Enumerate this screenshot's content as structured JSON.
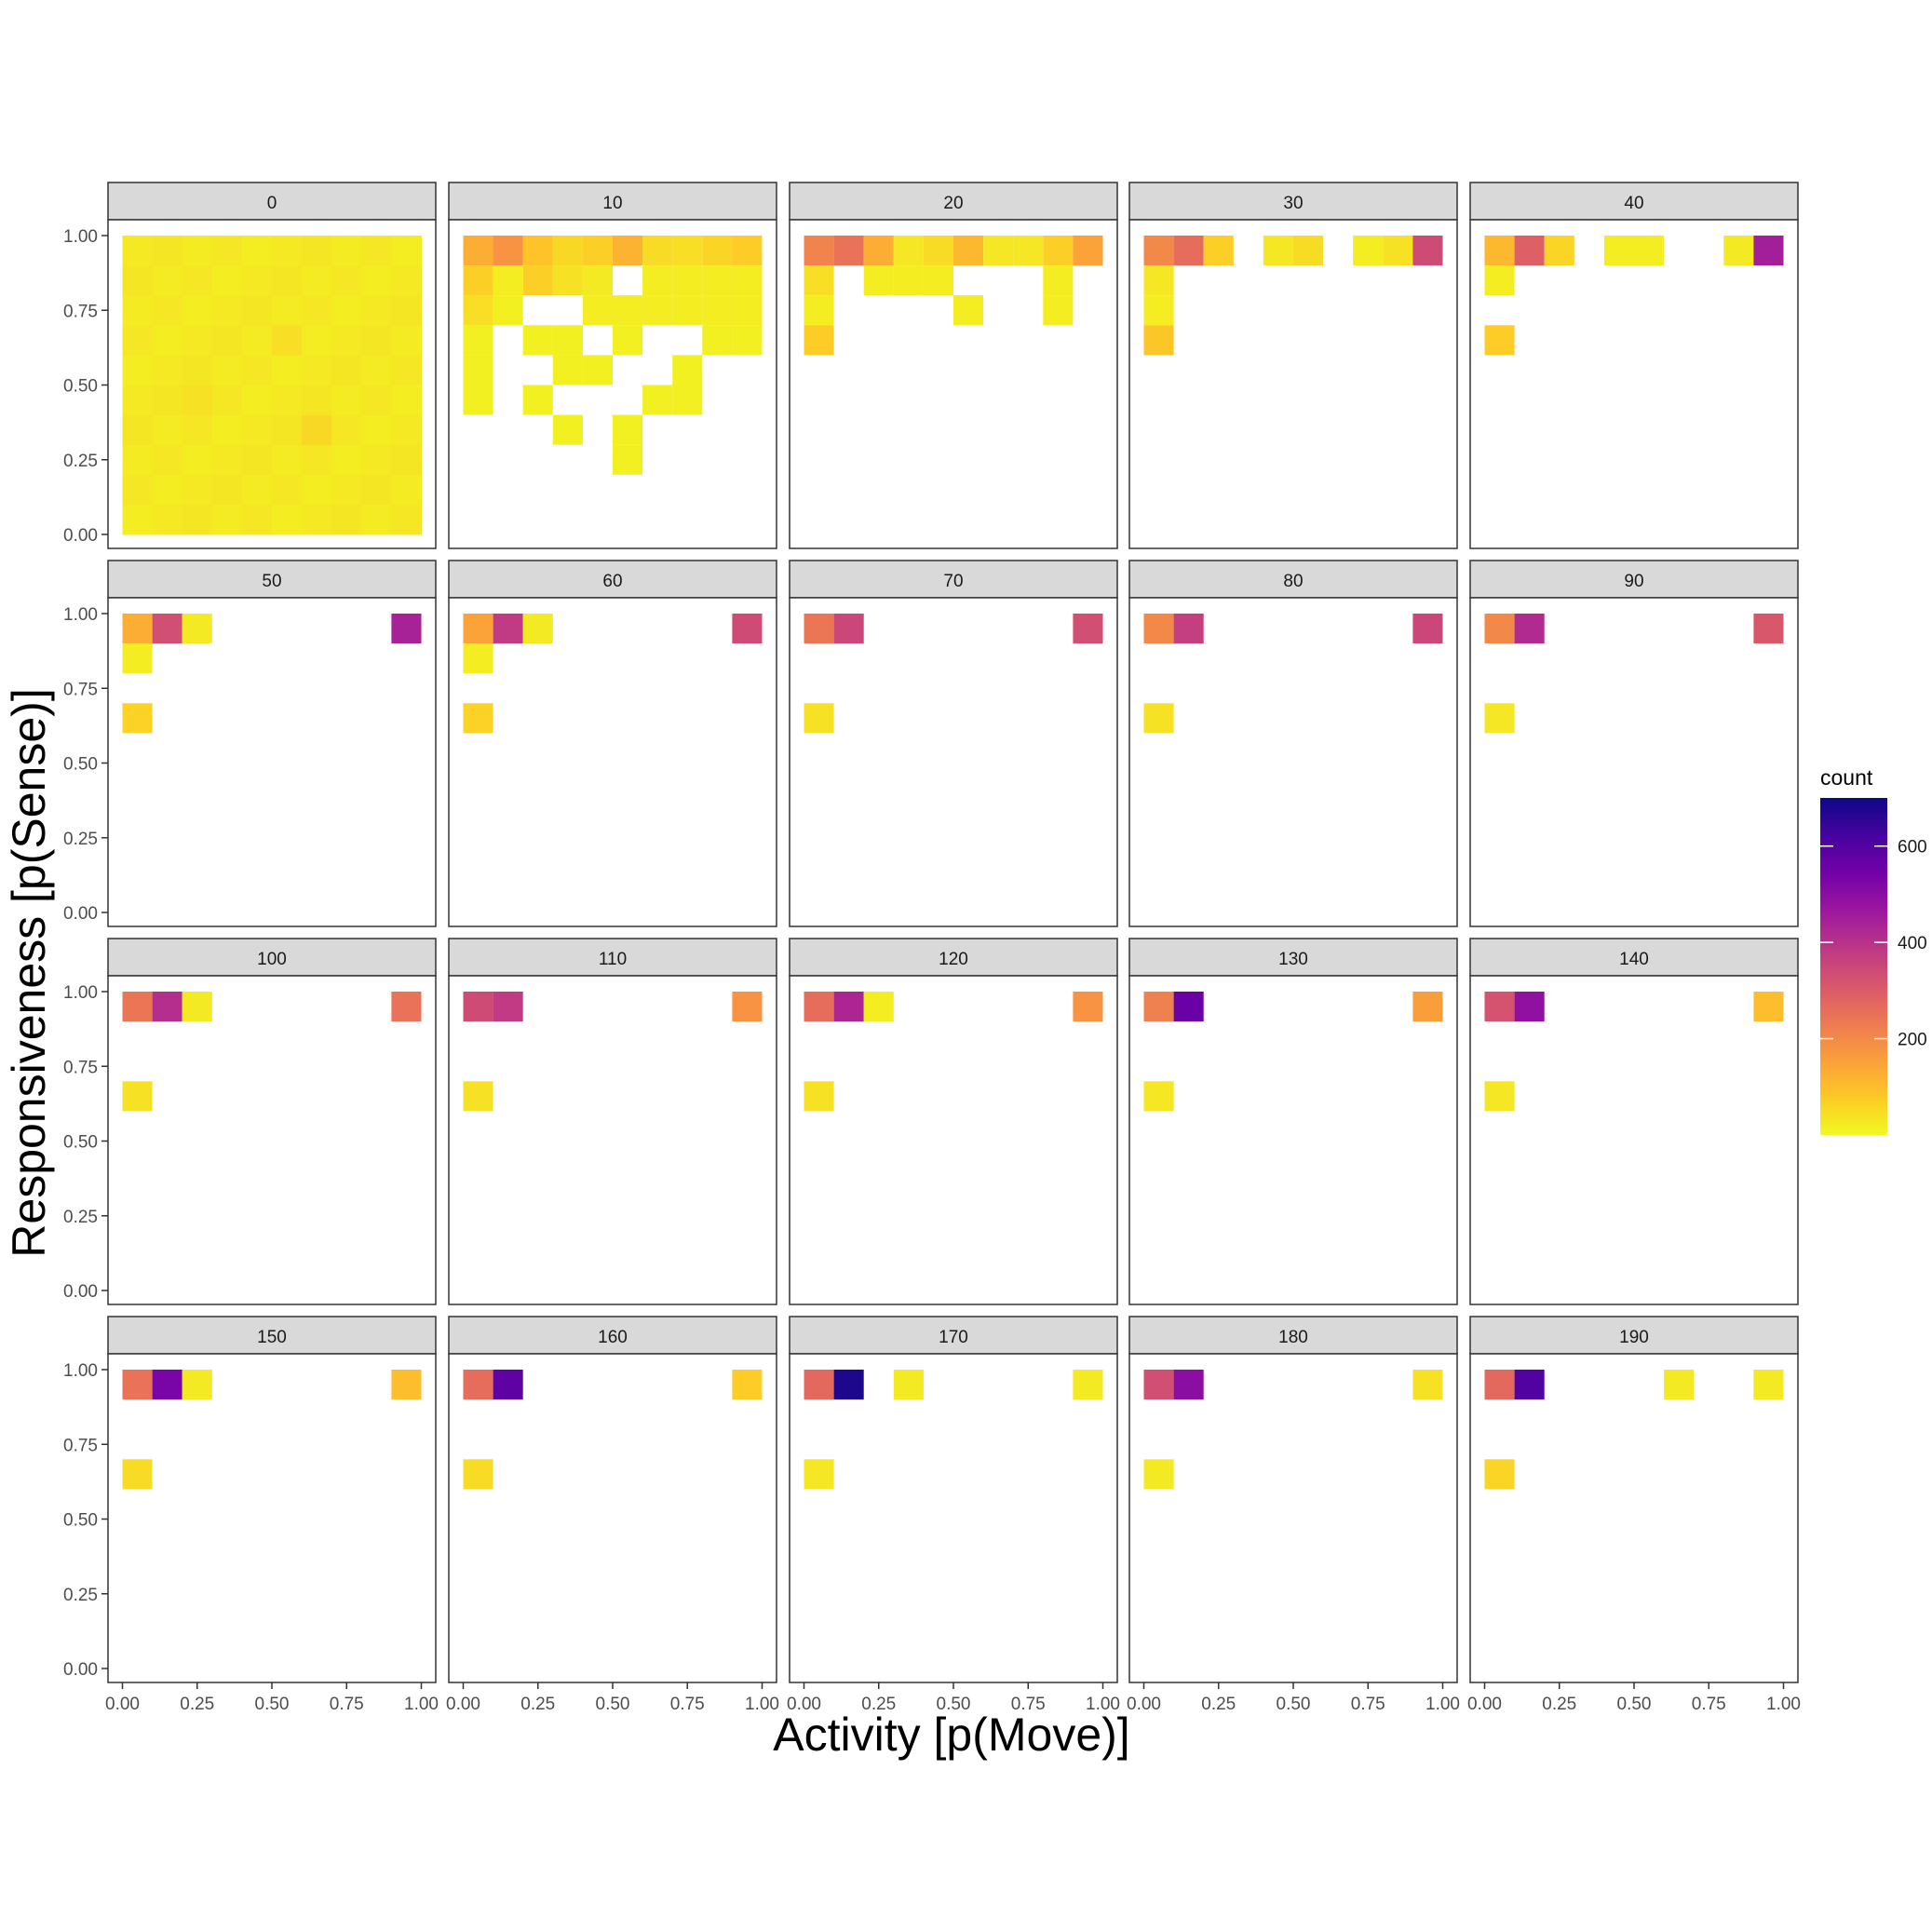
{
  "chart_data": {
    "type": "heatmap",
    "xlabel": "Activity [p(Move)]",
    "ylabel": "Responsiveness [p(Sense)]",
    "xlim": [
      0,
      1
    ],
    "ylim": [
      0,
      1
    ],
    "x_ticks": [
      "0.00",
      "0.25",
      "0.50",
      "0.75",
      "1.00"
    ],
    "y_ticks": [
      "0.00",
      "0.25",
      "0.50",
      "0.75",
      "1.00"
    ],
    "grid": false,
    "bin_width": 0.1,
    "legend": {
      "title": "count",
      "position": "right",
      "ticks": [
        "200",
        "400",
        "600"
      ],
      "tick_values": [
        200,
        400,
        600
      ],
      "range": [
        0,
        700
      ],
      "colormap": "plasma (reversed)"
    },
    "panels": [
      {
        "label": "0",
        "full_grid": true,
        "cells": [
          {
            "x": 0.55,
            "y": 0.65,
            "count": 45
          },
          {
            "x": 0.65,
            "y": 0.35,
            "count": 55
          },
          {
            "x": 0.25,
            "y": 0.45,
            "count": 40
          }
        ]
      },
      {
        "label": "10",
        "cells": [
          {
            "x": 0.05,
            "y": 0.95,
            "count": 130
          },
          {
            "x": 0.15,
            "y": 0.95,
            "count": 180
          },
          {
            "x": 0.25,
            "y": 0.95,
            "count": 90
          },
          {
            "x": 0.35,
            "y": 0.95,
            "count": 55
          },
          {
            "x": 0.45,
            "y": 0.95,
            "count": 70
          },
          {
            "x": 0.55,
            "y": 0.95,
            "count": 120
          },
          {
            "x": 0.65,
            "y": 0.95,
            "count": 50
          },
          {
            "x": 0.75,
            "y": 0.95,
            "count": 45
          },
          {
            "x": 0.85,
            "y": 0.95,
            "count": 60
          },
          {
            "x": 0.95,
            "y": 0.95,
            "count": 75
          },
          {
            "x": 0.05,
            "y": 0.85,
            "count": 70
          },
          {
            "x": 0.15,
            "y": 0.85,
            "count": 20
          },
          {
            "x": 0.25,
            "y": 0.85,
            "count": 70
          },
          {
            "x": 0.35,
            "y": 0.85,
            "count": 40
          },
          {
            "x": 0.45,
            "y": 0.85,
            "count": 25
          },
          {
            "x": 0.65,
            "y": 0.85,
            "count": 20
          },
          {
            "x": 0.75,
            "y": 0.85,
            "count": 20
          },
          {
            "x": 0.85,
            "y": 0.85,
            "count": 20
          },
          {
            "x": 0.95,
            "y": 0.85,
            "count": 20
          },
          {
            "x": 0.05,
            "y": 0.75,
            "count": 45
          },
          {
            "x": 0.15,
            "y": 0.75,
            "count": 15
          },
          {
            "x": 0.45,
            "y": 0.75,
            "count": 20
          },
          {
            "x": 0.55,
            "y": 0.75,
            "count": 20
          },
          {
            "x": 0.65,
            "y": 0.75,
            "count": 20
          },
          {
            "x": 0.75,
            "y": 0.75,
            "count": 20
          },
          {
            "x": 0.85,
            "y": 0.75,
            "count": 20
          },
          {
            "x": 0.95,
            "y": 0.75,
            "count": 20
          },
          {
            "x": 0.05,
            "y": 0.65,
            "count": 15
          },
          {
            "x": 0.25,
            "y": 0.65,
            "count": 15
          },
          {
            "x": 0.35,
            "y": 0.65,
            "count": 15
          },
          {
            "x": 0.55,
            "y": 0.65,
            "count": 15
          },
          {
            "x": 0.85,
            "y": 0.65,
            "count": 15
          },
          {
            "x": 0.95,
            "y": 0.65,
            "count": 15
          },
          {
            "x": 0.05,
            "y": 0.55,
            "count": 15
          },
          {
            "x": 0.35,
            "y": 0.55,
            "count": 15
          },
          {
            "x": 0.45,
            "y": 0.55,
            "count": 15
          },
          {
            "x": 0.75,
            "y": 0.55,
            "count": 15
          },
          {
            "x": 0.05,
            "y": 0.45,
            "count": 15
          },
          {
            "x": 0.25,
            "y": 0.45,
            "count": 15
          },
          {
            "x": 0.65,
            "y": 0.45,
            "count": 15
          },
          {
            "x": 0.75,
            "y": 0.45,
            "count": 15
          },
          {
            "x": 0.35,
            "y": 0.35,
            "count": 15
          },
          {
            "x": 0.55,
            "y": 0.35,
            "count": 15
          },
          {
            "x": 0.55,
            "y": 0.25,
            "count": 15
          }
        ]
      },
      {
        "label": "20",
        "cells": [
          {
            "x": 0.05,
            "y": 0.95,
            "count": 210
          },
          {
            "x": 0.15,
            "y": 0.95,
            "count": 250
          },
          {
            "x": 0.25,
            "y": 0.95,
            "count": 130
          },
          {
            "x": 0.35,
            "y": 0.95,
            "count": 30
          },
          {
            "x": 0.45,
            "y": 0.95,
            "count": 50
          },
          {
            "x": 0.55,
            "y": 0.95,
            "count": 110
          },
          {
            "x": 0.65,
            "y": 0.95,
            "count": 30
          },
          {
            "x": 0.75,
            "y": 0.95,
            "count": 30
          },
          {
            "x": 0.85,
            "y": 0.95,
            "count": 70
          },
          {
            "x": 0.95,
            "y": 0.95,
            "count": 150
          },
          {
            "x": 0.05,
            "y": 0.85,
            "count": 45
          },
          {
            "x": 0.25,
            "y": 0.85,
            "count": 20
          },
          {
            "x": 0.35,
            "y": 0.85,
            "count": 20
          },
          {
            "x": 0.45,
            "y": 0.85,
            "count": 20
          },
          {
            "x": 0.85,
            "y": 0.85,
            "count": 20
          },
          {
            "x": 0.05,
            "y": 0.75,
            "count": 20
          },
          {
            "x": 0.55,
            "y": 0.75,
            "count": 20
          },
          {
            "x": 0.85,
            "y": 0.75,
            "count": 20
          },
          {
            "x": 0.05,
            "y": 0.65,
            "count": 75
          }
        ]
      },
      {
        "label": "30",
        "cells": [
          {
            "x": 0.05,
            "y": 0.95,
            "count": 200
          },
          {
            "x": 0.15,
            "y": 0.95,
            "count": 260
          },
          {
            "x": 0.25,
            "y": 0.95,
            "count": 70
          },
          {
            "x": 0.45,
            "y": 0.95,
            "count": 30
          },
          {
            "x": 0.55,
            "y": 0.95,
            "count": 50
          },
          {
            "x": 0.75,
            "y": 0.95,
            "count": 20
          },
          {
            "x": 0.85,
            "y": 0.95,
            "count": 40
          },
          {
            "x": 0.95,
            "y": 0.95,
            "count": 340
          },
          {
            "x": 0.05,
            "y": 0.85,
            "count": 30
          },
          {
            "x": 0.05,
            "y": 0.75,
            "count": 20
          },
          {
            "x": 0.05,
            "y": 0.65,
            "count": 85
          }
        ]
      },
      {
        "label": "40",
        "cells": [
          {
            "x": 0.05,
            "y": 0.95,
            "count": 110
          },
          {
            "x": 0.15,
            "y": 0.95,
            "count": 290
          },
          {
            "x": 0.25,
            "y": 0.95,
            "count": 60
          },
          {
            "x": 0.45,
            "y": 0.95,
            "count": 20
          },
          {
            "x": 0.55,
            "y": 0.95,
            "count": 20
          },
          {
            "x": 0.85,
            "y": 0.95,
            "count": 25
          },
          {
            "x": 0.95,
            "y": 0.95,
            "count": 450
          },
          {
            "x": 0.05,
            "y": 0.85,
            "count": 20
          },
          {
            "x": 0.05,
            "y": 0.65,
            "count": 75
          }
        ]
      },
      {
        "label": "50",
        "cells": [
          {
            "x": 0.05,
            "y": 0.95,
            "count": 130
          },
          {
            "x": 0.15,
            "y": 0.95,
            "count": 330
          },
          {
            "x": 0.25,
            "y": 0.95,
            "count": 25
          },
          {
            "x": 0.95,
            "y": 0.95,
            "count": 440
          },
          {
            "x": 0.05,
            "y": 0.85,
            "count": 20
          },
          {
            "x": 0.05,
            "y": 0.65,
            "count": 65
          }
        ]
      },
      {
        "label": "60",
        "cells": [
          {
            "x": 0.05,
            "y": 0.95,
            "count": 150
          },
          {
            "x": 0.15,
            "y": 0.95,
            "count": 380
          },
          {
            "x": 0.25,
            "y": 0.95,
            "count": 25
          },
          {
            "x": 0.95,
            "y": 0.95,
            "count": 340
          },
          {
            "x": 0.05,
            "y": 0.85,
            "count": 20
          },
          {
            "x": 0.05,
            "y": 0.65,
            "count": 65
          }
        ]
      },
      {
        "label": "70",
        "cells": [
          {
            "x": 0.05,
            "y": 0.95,
            "count": 240
          },
          {
            "x": 0.15,
            "y": 0.95,
            "count": 350
          },
          {
            "x": 0.95,
            "y": 0.95,
            "count": 330
          },
          {
            "x": 0.05,
            "y": 0.65,
            "count": 40
          }
        ]
      },
      {
        "label": "80",
        "cells": [
          {
            "x": 0.05,
            "y": 0.95,
            "count": 200
          },
          {
            "x": 0.15,
            "y": 0.95,
            "count": 370
          },
          {
            "x": 0.95,
            "y": 0.95,
            "count": 350
          },
          {
            "x": 0.05,
            "y": 0.65,
            "count": 40
          }
        ]
      },
      {
        "label": "90",
        "cells": [
          {
            "x": 0.05,
            "y": 0.95,
            "count": 200
          },
          {
            "x": 0.15,
            "y": 0.95,
            "count": 420
          },
          {
            "x": 0.95,
            "y": 0.95,
            "count": 310
          },
          {
            "x": 0.05,
            "y": 0.65,
            "count": 30
          }
        ]
      },
      {
        "label": "100",
        "cells": [
          {
            "x": 0.05,
            "y": 0.95,
            "count": 240
          },
          {
            "x": 0.15,
            "y": 0.95,
            "count": 410
          },
          {
            "x": 0.25,
            "y": 0.95,
            "count": 25
          },
          {
            "x": 0.95,
            "y": 0.95,
            "count": 250
          },
          {
            "x": 0.05,
            "y": 0.65,
            "count": 40
          }
        ]
      },
      {
        "label": "110",
        "cells": [
          {
            "x": 0.05,
            "y": 0.95,
            "count": 340
          },
          {
            "x": 0.15,
            "y": 0.95,
            "count": 380
          },
          {
            "x": 0.95,
            "y": 0.95,
            "count": 180
          },
          {
            "x": 0.05,
            "y": 0.65,
            "count": 40
          }
        ]
      },
      {
        "label": "120",
        "cells": [
          {
            "x": 0.05,
            "y": 0.95,
            "count": 260
          },
          {
            "x": 0.15,
            "y": 0.95,
            "count": 430
          },
          {
            "x": 0.25,
            "y": 0.95,
            "count": 20
          },
          {
            "x": 0.95,
            "y": 0.95,
            "count": 180
          },
          {
            "x": 0.05,
            "y": 0.65,
            "count": 40
          }
        ]
      },
      {
        "label": "130",
        "cells": [
          {
            "x": 0.05,
            "y": 0.95,
            "count": 220
          },
          {
            "x": 0.15,
            "y": 0.95,
            "count": 560
          },
          {
            "x": 0.95,
            "y": 0.95,
            "count": 160
          },
          {
            "x": 0.05,
            "y": 0.65,
            "count": 30
          }
        ]
      },
      {
        "label": "140",
        "cells": [
          {
            "x": 0.05,
            "y": 0.95,
            "count": 320
          },
          {
            "x": 0.15,
            "y": 0.95,
            "count": 490
          },
          {
            "x": 0.95,
            "y": 0.95,
            "count": 100
          },
          {
            "x": 0.05,
            "y": 0.65,
            "count": 30
          }
        ]
      },
      {
        "label": "150",
        "cells": [
          {
            "x": 0.05,
            "y": 0.95,
            "count": 250
          },
          {
            "x": 0.15,
            "y": 0.95,
            "count": 530
          },
          {
            "x": 0.25,
            "y": 0.95,
            "count": 25
          },
          {
            "x": 0.95,
            "y": 0.95,
            "count": 100
          },
          {
            "x": 0.05,
            "y": 0.65,
            "count": 50
          }
        ]
      },
      {
        "label": "160",
        "cells": [
          {
            "x": 0.05,
            "y": 0.95,
            "count": 260
          },
          {
            "x": 0.15,
            "y": 0.95,
            "count": 580
          },
          {
            "x": 0.95,
            "y": 0.95,
            "count": 75
          },
          {
            "x": 0.05,
            "y": 0.65,
            "count": 50
          }
        ]
      },
      {
        "label": "170",
        "cells": [
          {
            "x": 0.05,
            "y": 0.95,
            "count": 270
          },
          {
            "x": 0.15,
            "y": 0.95,
            "count": 680
          },
          {
            "x": 0.35,
            "y": 0.95,
            "count": 25
          },
          {
            "x": 0.95,
            "y": 0.95,
            "count": 25
          },
          {
            "x": 0.05,
            "y": 0.65,
            "count": 30
          }
        ]
      },
      {
        "label": "180",
        "cells": [
          {
            "x": 0.05,
            "y": 0.95,
            "count": 330
          },
          {
            "x": 0.15,
            "y": 0.95,
            "count": 500
          },
          {
            "x": 0.95,
            "y": 0.95,
            "count": 40
          },
          {
            "x": 0.05,
            "y": 0.65,
            "count": 25
          }
        ]
      },
      {
        "label": "190",
        "cells": [
          {
            "x": 0.05,
            "y": 0.95,
            "count": 270
          },
          {
            "x": 0.15,
            "y": 0.95,
            "count": 600
          },
          {
            "x": 0.65,
            "y": 0.95,
            "count": 25
          },
          {
            "x": 0.95,
            "y": 0.95,
            "count": 25
          },
          {
            "x": 0.05,
            "y": 0.65,
            "count": 60
          }
        ]
      }
    ]
  }
}
